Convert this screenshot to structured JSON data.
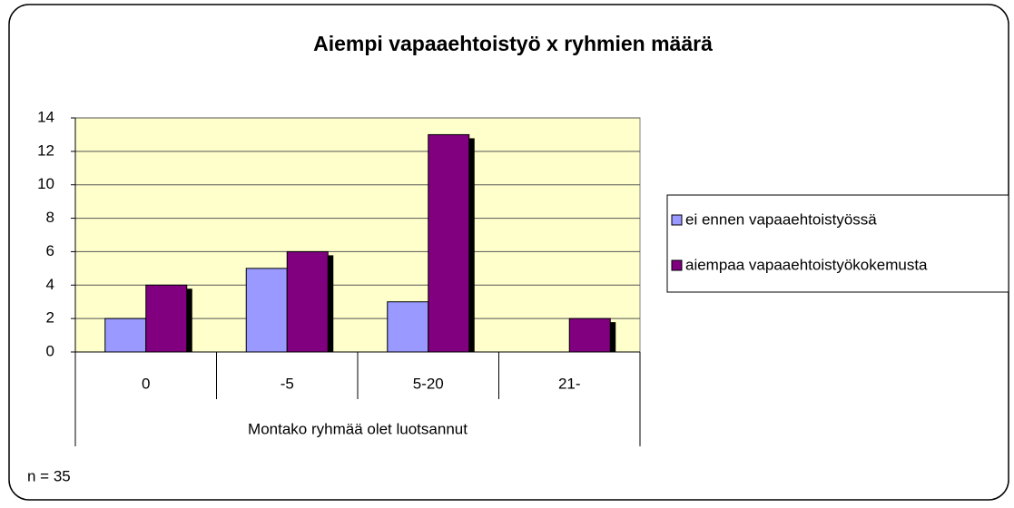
{
  "chart_data": {
    "type": "bar",
    "title": "Aiempi vapaaehtoistyö x ryhmien määrä",
    "x_label": "Montako ryhmää olet luotsannut",
    "annotation": "n = 35",
    "categories": [
      "0",
      "-5",
      "5-20",
      "21-"
    ],
    "series": [
      {
        "name": "ei ennen vapaaehtoistyössä",
        "color": "#9999ff",
        "values": [
          2,
          5,
          3,
          0
        ]
      },
      {
        "name": "aiempaa vapaaehtoistyökokemusta",
        "color": "#800080",
        "values": [
          4,
          6,
          13,
          2
        ]
      }
    ],
    "ylim": [
      0,
      14
    ],
    "yticks": [
      0,
      2,
      4,
      6,
      8,
      10,
      12,
      14
    ],
    "grid": true,
    "legend": "right"
  }
}
